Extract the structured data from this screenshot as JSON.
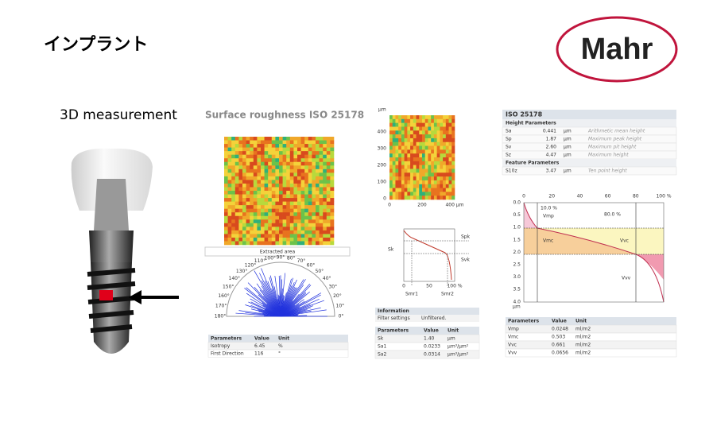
{
  "header": {
    "title": "インプラント",
    "logo": "Mahr"
  },
  "implant": {
    "label": "3D measurement"
  },
  "roughness": {
    "title": "Surface roughness ISO 25178",
    "extracted_area": "Extracted area",
    "polar_labels": [
      "0°",
      "10°",
      "20°",
      "30°",
      "40°",
      "50°",
      "60°",
      "70°",
      "80°",
      "90°",
      "100°",
      "110°",
      "120°",
      "130°",
      "140°",
      "150°",
      "160°",
      "170°",
      "180°"
    ],
    "table": {
      "columns": [
        "Parameters",
        "Value",
        "Unit"
      ],
      "rows": [
        [
          "Isotropy",
          "6.45",
          "%"
        ],
        [
          "First Direction",
          "116",
          "°"
        ]
      ]
    }
  },
  "topography": {
    "unit": "µm",
    "y_ticks": [
      "400",
      "300",
      "200",
      "100",
      "0"
    ],
    "x_ticks": [
      "0",
      "200",
      "400 µm"
    ]
  },
  "material_ratio": {
    "labels": {
      "spk": "Spk",
      "sk": "Sk",
      "svk": "Svk",
      "smr1": "Smr1",
      "smr2": "Smr2"
    },
    "x_ticks": [
      "0",
      "50",
      "100 %"
    ],
    "info": {
      "title": "Information",
      "rows": [
        [
          "Filter settings",
          "Unfiltered."
        ]
      ]
    },
    "table": {
      "columns": [
        "Parameters",
        "Value",
        "Unit"
      ],
      "rows": [
        [
          "Sk",
          "1.40",
          "µm"
        ],
        [
          "Sa1",
          "0.0233",
          "µm³/µm²"
        ],
        [
          "Sa2",
          "0.0314",
          "µm³/µm²"
        ]
      ]
    }
  },
  "iso": {
    "title": "ISO 25178",
    "sections": [
      {
        "title": "Height Parameters",
        "rows": [
          [
            "Sa",
            "0.441",
            "µm",
            "Arithmetic mean height"
          ],
          [
            "Sp",
            "1.87",
            "µm",
            "Maximum peak height"
          ],
          [
            "Sv",
            "2.60",
            "µm",
            "Maximum pit height"
          ],
          [
            "Sz",
            "4.47",
            "µm",
            "Maximum height"
          ]
        ]
      },
      {
        "title": "Feature Parameters",
        "rows": [
          [
            "S10z",
            "3.47",
            "µm",
            "Ten point height"
          ]
        ]
      }
    ]
  },
  "volume": {
    "x_ticks": [
      "0",
      "20",
      "40",
      "60",
      "80",
      "100 %"
    ],
    "y_ticks": [
      "0.0",
      "0.5",
      "1.0",
      "1.5",
      "2.0",
      "2.5",
      "3.0",
      "3.5",
      "4.0"
    ],
    "unit": "µm",
    "labels": {
      "mr1": "10.0 %",
      "vmp": "Vmp",
      "mr2": "80.0 %",
      "vmc": "Vmc",
      "vvc": "Vvc",
      "vvv": "Vvv"
    },
    "table": {
      "columns": [
        "Parameters",
        "Value",
        "Unit"
      ],
      "rows": [
        [
          "Vmp",
          "0.0248",
          "ml/m2"
        ],
        [
          "Vmc",
          "0.503",
          "ml/m2"
        ],
        [
          "Vvc",
          "0.661",
          "ml/m2"
        ],
        [
          "Vvv",
          "0.0656",
          "ml/m2"
        ]
      ]
    }
  }
}
